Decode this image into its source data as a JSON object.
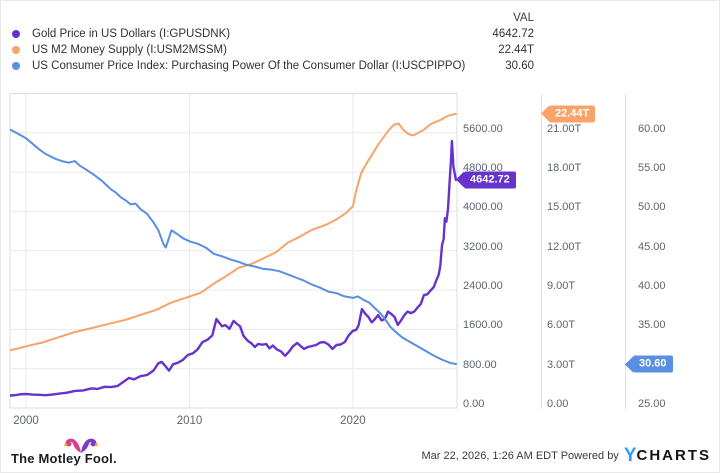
{
  "legend": {
    "val_header": "VAL",
    "series": [
      {
        "label": "Gold Price in US Dollars (I:GPUSDNK)",
        "value": "4642.72",
        "color": "#6633CC"
      },
      {
        "label": "US M2 Money Supply (I:USM2MSSM)",
        "value": "22.44T",
        "color": "#F9A369"
      },
      {
        "label": "US Consumer Price Index: Purchasing Power Of the Consumer Dollar (I:USCPIPPO)",
        "value": "30.60",
        "color": "#5A8EE0"
      }
    ]
  },
  "chart_data": {
    "type": "line",
    "title": "",
    "grid": true,
    "x_range": [
      1999.02,
      2026.37
    ],
    "x_ticks": [
      {
        "label": "2000",
        "year": 2000
      },
      {
        "label": "2010",
        "year": 2010
      },
      {
        "label": "2020",
        "year": 2020
      }
    ],
    "axes": [
      {
        "name": "gold-price-axis",
        "range": [
          0,
          6400
        ],
        "ticks": [
          {
            "label": "0.00",
            "v": 0
          },
          {
            "label": "800.00",
            "v": 800
          },
          {
            "label": "1600.00",
            "v": 1600
          },
          {
            "label": "2400.00",
            "v": 2400
          },
          {
            "label": "3200.00",
            "v": 3200
          },
          {
            "label": "4000.00",
            "v": 4000
          },
          {
            "label": "4800.00",
            "v": 4800
          },
          {
            "label": "5600.00",
            "v": 5600
          }
        ],
        "badge": {
          "label": "4642.72",
          "v": 4642.72
        }
      },
      {
        "name": "m2-money-supply-axis",
        "range": [
          0,
          24
        ],
        "ticks": [
          {
            "label": "0.00",
            "v": 0
          },
          {
            "label": "3.00T",
            "v": 3
          },
          {
            "label": "6.00T",
            "v": 6
          },
          {
            "label": "9.00T",
            "v": 9
          },
          {
            "label": "12.00T",
            "v": 12
          },
          {
            "label": "15.00T",
            "v": 15
          },
          {
            "label": "18.00T",
            "v": 18
          },
          {
            "label": "21.00T",
            "v": 21
          }
        ],
        "badge": {
          "label": "22.44T",
          "v": 22.44
        }
      },
      {
        "name": "cpi-purchasing-power-axis",
        "range": [
          25,
          65
        ],
        "ticks": [
          {
            "label": "25.00",
            "v": 25
          },
          {
            "label": "30.00",
            "v": 30
          },
          {
            "label": "35.00",
            "v": 35
          },
          {
            "label": "40.00",
            "v": 40
          },
          {
            "label": "45.00",
            "v": 45
          },
          {
            "label": "50.00",
            "v": 50
          },
          {
            "label": "55.00",
            "v": 55
          },
          {
            "label": "60.00",
            "v": 60
          }
        ],
        "badge": {
          "label": "30.60",
          "v": 30.6
        }
      }
    ],
    "series": [
      {
        "name": "Gold Price in US Dollars",
        "axis": 0,
        "color": "#6633CC",
        "width": 2.4,
        "points": [
          [
            1999.05,
            255
          ],
          [
            1999.4,
            262
          ],
          [
            1999.7,
            280
          ],
          [
            2000,
            285
          ],
          [
            2000.4,
            272
          ],
          [
            2000.8,
            268
          ],
          [
            2001.2,
            260
          ],
          [
            2001.6,
            272
          ],
          [
            2002,
            290
          ],
          [
            2002.5,
            312
          ],
          [
            2003,
            348
          ],
          [
            2003.5,
            358
          ],
          [
            2004,
            398
          ],
          [
            2004.4,
            388
          ],
          [
            2004.8,
            432
          ],
          [
            2005.2,
            426
          ],
          [
            2005.6,
            448
          ],
          [
            2006,
            542
          ],
          [
            2006.3,
            612
          ],
          [
            2006.6,
            582
          ],
          [
            2007,
            648
          ],
          [
            2007.4,
            672
          ],
          [
            2007.8,
            762
          ],
          [
            2008.1,
            912
          ],
          [
            2008.3,
            938
          ],
          [
            2008.55,
            842
          ],
          [
            2008.75,
            762
          ],
          [
            2009,
            890
          ],
          [
            2009.3,
            922
          ],
          [
            2009.6,
            978
          ],
          [
            2009.9,
            1078
          ],
          [
            2010.2,
            1112
          ],
          [
            2010.5,
            1192
          ],
          [
            2010.8,
            1342
          ],
          [
            2011.1,
            1388
          ],
          [
            2011.4,
            1478
          ],
          [
            2011.65,
            1812
          ],
          [
            2011.8,
            1742
          ],
          [
            2012,
            1662
          ],
          [
            2012.2,
            1688
          ],
          [
            2012.45,
            1612
          ],
          [
            2012.7,
            1772
          ],
          [
            2012.9,
            1712
          ],
          [
            2013.1,
            1662
          ],
          [
            2013.3,
            1472
          ],
          [
            2013.55,
            1372
          ],
          [
            2013.8,
            1312
          ],
          [
            2014,
            1242
          ],
          [
            2014.2,
            1302
          ],
          [
            2014.45,
            1288
          ],
          [
            2014.7,
            1302
          ],
          [
            2014.9,
            1212
          ],
          [
            2015.1,
            1272
          ],
          [
            2015.35,
            1192
          ],
          [
            2015.6,
            1152
          ],
          [
            2015.85,
            1062
          ],
          [
            2016.1,
            1152
          ],
          [
            2016.35,
            1262
          ],
          [
            2016.6,
            1322
          ],
          [
            2016.8,
            1262
          ],
          [
            2017,
            1202
          ],
          [
            2017.25,
            1242
          ],
          [
            2017.5,
            1262
          ],
          [
            2017.75,
            1282
          ],
          [
            2018,
            1332
          ],
          [
            2018.25,
            1342
          ],
          [
            2018.5,
            1292
          ],
          [
            2018.75,
            1202
          ],
          [
            2019,
            1282
          ],
          [
            2019.25,
            1292
          ],
          [
            2019.5,
            1342
          ],
          [
            2019.75,
            1482
          ],
          [
            2020,
            1572
          ],
          [
            2020.2,
            1592
          ],
          [
            2020.35,
            1682
          ],
          [
            2020.55,
            2012
          ],
          [
            2020.75,
            1922
          ],
          [
            2020.95,
            1852
          ],
          [
            2021.15,
            1742
          ],
          [
            2021.35,
            1812
          ],
          [
            2021.55,
            1892
          ],
          [
            2021.75,
            1782
          ],
          [
            2021.95,
            1812
          ],
          [
            2022.15,
            1962
          ],
          [
            2022.35,
            1912
          ],
          [
            2022.55,
            1852
          ],
          [
            2022.75,
            1692
          ],
          [
            2022.95,
            1782
          ],
          [
            2023.15,
            1892
          ],
          [
            2023.35,
            1962
          ],
          [
            2023.55,
            1932
          ],
          [
            2023.75,
            1962
          ],
          [
            2023.95,
            2042
          ],
          [
            2024.15,
            2112
          ],
          [
            2024.35,
            2302
          ],
          [
            2024.55,
            2312
          ],
          [
            2024.75,
            2392
          ],
          [
            2024.95,
            2462
          ],
          [
            2025.1,
            2592
          ],
          [
            2025.25,
            2712
          ],
          [
            2025.35,
            2892
          ],
          [
            2025.45,
            3312
          ],
          [
            2025.55,
            3432
          ],
          [
            2025.63,
            3862
          ],
          [
            2025.72,
            3792
          ],
          [
            2025.82,
            4052
          ],
          [
            2025.92,
            4602
          ],
          [
            2026,
            5052
          ],
          [
            2026.06,
            5432
          ],
          [
            2026.15,
            4912
          ],
          [
            2026.3,
            4642.72
          ]
        ]
      },
      {
        "name": "US M2 Money Supply (trillions USD)",
        "axis": 1,
        "color": "#F9A369",
        "width": 2,
        "points": [
          [
            1999.05,
            4.4
          ],
          [
            2000,
            4.7
          ],
          [
            2001,
            5.0
          ],
          [
            2002,
            5.4
          ],
          [
            2003,
            5.8
          ],
          [
            2004,
            6.1
          ],
          [
            2005,
            6.4
          ],
          [
            2006,
            6.7
          ],
          [
            2007,
            7.1
          ],
          [
            2008,
            7.5
          ],
          [
            2008.8,
            8.0
          ],
          [
            2009.5,
            8.3
          ],
          [
            2010,
            8.5
          ],
          [
            2010.7,
            8.8
          ],
          [
            2011.5,
            9.5
          ],
          [
            2012.3,
            10.1
          ],
          [
            2013,
            10.7
          ],
          [
            2013.8,
            11.0
          ],
          [
            2014.5,
            11.4
          ],
          [
            2015.3,
            11.9
          ],
          [
            2016,
            12.6
          ],
          [
            2016.8,
            13.1
          ],
          [
            2017.5,
            13.6
          ],
          [
            2018.4,
            14.0
          ],
          [
            2019,
            14.4
          ],
          [
            2019.6,
            14.9
          ],
          [
            2020,
            15.4
          ],
          [
            2020.2,
            16.6
          ],
          [
            2020.5,
            17.9
          ],
          [
            2020.8,
            18.6
          ],
          [
            2021.2,
            19.4
          ],
          [
            2021.6,
            20.2
          ],
          [
            2021.9,
            20.7
          ],
          [
            2022.2,
            21.2
          ],
          [
            2022.5,
            21.6
          ],
          [
            2022.8,
            21.7
          ],
          [
            2023.1,
            21.2
          ],
          [
            2023.4,
            20.9
          ],
          [
            2023.7,
            20.8
          ],
          [
            2024,
            21.0
          ],
          [
            2024.3,
            21.2
          ],
          [
            2024.7,
            21.6
          ],
          [
            2025,
            21.8
          ],
          [
            2025.4,
            22.0
          ],
          [
            2025.8,
            22.3
          ],
          [
            2026.3,
            22.44
          ]
        ]
      },
      {
        "name": "US CPI: Purchasing Power Of the Consumer Dollar",
        "axis": 2,
        "color": "#5A8EE0",
        "width": 2,
        "points": [
          [
            1999.05,
            60.4
          ],
          [
            1999.5,
            59.9
          ],
          [
            2000,
            59.3
          ],
          [
            2000.4,
            58.6
          ],
          [
            2000.8,
            57.9
          ],
          [
            2001.2,
            57.3
          ],
          [
            2001.5,
            57.0
          ],
          [
            2001.8,
            56.7
          ],
          [
            2002.2,
            56.4
          ],
          [
            2002.6,
            56.2
          ],
          [
            2003,
            56.4
          ],
          [
            2003.3,
            55.8
          ],
          [
            2003.7,
            55.3
          ],
          [
            2004.2,
            54.6
          ],
          [
            2004.7,
            53.8
          ],
          [
            2005.2,
            52.8
          ],
          [
            2005.5,
            52.4
          ],
          [
            2005.8,
            51.8
          ],
          [
            2006.1,
            51.4
          ],
          [
            2006.4,
            50.9
          ],
          [
            2006.7,
            51.0
          ],
          [
            2007,
            50.3
          ],
          [
            2007.4,
            49.7
          ],
          [
            2007.8,
            48.6
          ],
          [
            2008.1,
            47.6
          ],
          [
            2008.4,
            45.9
          ],
          [
            2008.55,
            45.4
          ],
          [
            2008.9,
            47.6
          ],
          [
            2009.2,
            47.2
          ],
          [
            2009.6,
            46.6
          ],
          [
            2010,
            46.2
          ],
          [
            2010.5,
            45.9
          ],
          [
            2011,
            45.4
          ],
          [
            2011.5,
            44.6
          ],
          [
            2012,
            44.3
          ],
          [
            2012.5,
            43.9
          ],
          [
            2013,
            43.6
          ],
          [
            2013.5,
            43.2
          ],
          [
            2014,
            43.0
          ],
          [
            2014.5,
            42.7
          ],
          [
            2015,
            42.6
          ],
          [
            2015.5,
            42.4
          ],
          [
            2016,
            42.0
          ],
          [
            2016.5,
            41.6
          ],
          [
            2017,
            41.2
          ],
          [
            2017.5,
            40.7
          ],
          [
            2018,
            40.3
          ],
          [
            2018.5,
            39.8
          ],
          [
            2019,
            39.6
          ],
          [
            2019.5,
            39.2
          ],
          [
            2020,
            39.0
          ],
          [
            2020.3,
            39.2
          ],
          [
            2020.7,
            38.7
          ],
          [
            2021,
            38.4
          ],
          [
            2021.3,
            37.8
          ],
          [
            2021.7,
            37.0
          ],
          [
            2022,
            36.2
          ],
          [
            2022.3,
            35.3
          ],
          [
            2022.6,
            34.7
          ],
          [
            2023,
            34.0
          ],
          [
            2023.5,
            33.4
          ],
          [
            2024,
            32.8
          ],
          [
            2024.5,
            32.2
          ],
          [
            2025,
            31.6
          ],
          [
            2025.5,
            31.1
          ],
          [
            2026,
            30.7
          ],
          [
            2026.3,
            30.6
          ]
        ]
      }
    ]
  },
  "footer": {
    "logo_text": "The Motley Fool.",
    "timestamp": "Mar 22, 2026, 1:26 AM EDT",
    "powered_by": "Powered by",
    "brand_y": "Y",
    "brand_rest": "CHARTS",
    "brand_blue": "#2E9FF3"
  }
}
